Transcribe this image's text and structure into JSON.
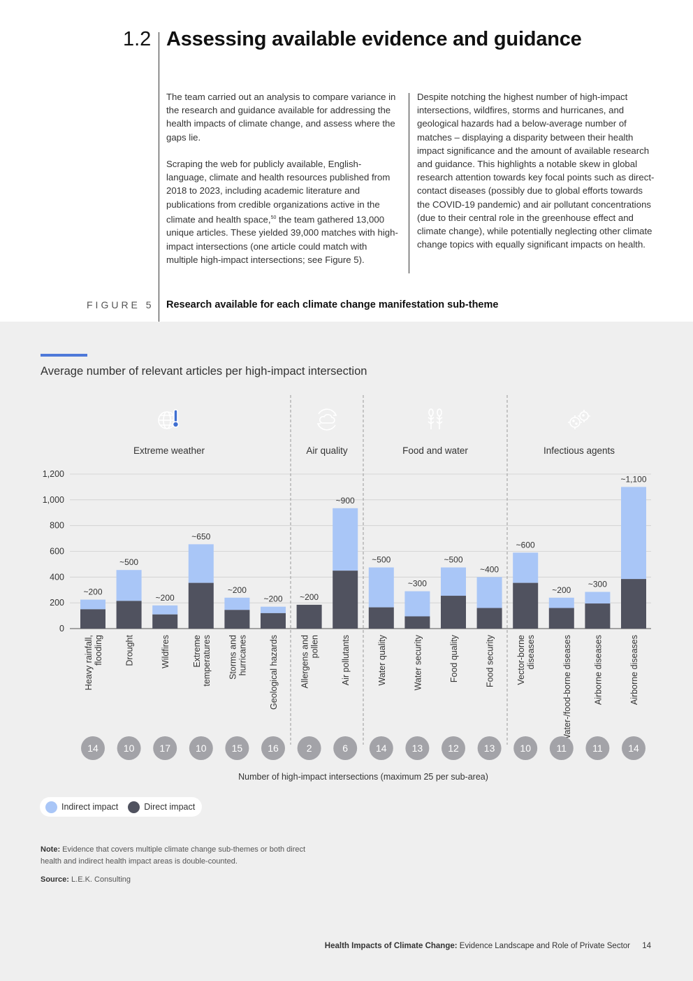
{
  "section": {
    "number": "1.2",
    "title": "Assessing available evidence and guidance"
  },
  "body": {
    "col1_p1": "The team carried out an analysis to compare variance in the research and guidance available for addressing the health impacts of climate change, and assess where the gaps lie.",
    "col1_p2a": "Scraping the web for publicly available, English-language, climate and health resources published from 2018 to 2023, including academic literature and publications from credible organizations active in the climate and health space,",
    "col1_p2_sup": "50",
    "col1_p2b": " the team gathered 13,000 unique articles. These yielded 39,000 matches with high-impact intersections (one article could match with multiple high-impact intersections; see Figure 5).",
    "col2_p1": "Despite notching the highest number of high-impact intersections, wildfires, storms and hurricanes, and geological hazards had a below-average number of matches – displaying a disparity between their health impact significance and the amount of available research and guidance. This highlights a notable skew in global research attention towards key focal points such as direct-contact diseases (possibly due to global efforts towards the COVID-19 pandemic) and air pollutant concentrations (due to their central role in the greenhouse effect and climate change), while potentially neglecting other climate change topics with equally significant impacts on health."
  },
  "figure": {
    "label": "FIGURE 5",
    "caption": "Research available for each climate change manifestation sub-theme",
    "subtitle": "Average number of relevant articles per high-impact intersection"
  },
  "categories": [
    {
      "name": "Extreme weather",
      "icon": "globe-thermometer-icon",
      "color": "#3f6fd1"
    },
    {
      "name": "Air quality",
      "icon": "cloud-cycle-icon",
      "color": "#4a8fe0"
    },
    {
      "name": "Food and water",
      "icon": "wheat-icon",
      "color": "#8e929b"
    },
    {
      "name": "Infectious agents",
      "icon": "virus-icon",
      "color": "#a93fd6"
    }
  ],
  "chart_data": {
    "type": "bar",
    "stacked": true,
    "title": "Average number of relevant articles per high-impact intersection",
    "ylim": [
      0,
      1200
    ],
    "yticks": [
      0,
      200,
      400,
      600,
      800,
      1000,
      1200
    ],
    "ytick_labels": [
      "0",
      "200",
      "400",
      "600",
      "800",
      "1,000",
      "1,200"
    ],
    "categories": [
      "Heavy rainfall, flooding",
      "Drought",
      "Wildfires",
      "Extreme temperatures",
      "Storms and hurricanes",
      "Geological hazards",
      "Allergens and pollen",
      "Air pollutants",
      "Water quality",
      "Water security",
      "Food quality",
      "Food security",
      "Vector-borne diseases",
      "Water-/food-borne diseases",
      "Airborne diseases",
      "Airborne diseases"
    ],
    "groups": [
      0,
      0,
      0,
      0,
      0,
      0,
      1,
      1,
      2,
      2,
      2,
      2,
      3,
      3,
      3,
      3
    ],
    "series": [
      {
        "name": "Direct impact",
        "color": "#50525f",
        "values": [
          150,
          215,
          110,
          355,
          145,
          120,
          185,
          450,
          165,
          95,
          255,
          160,
          355,
          160,
          195,
          385
        ]
      },
      {
        "name": "Indirect impact",
        "color": "#a9c6f7",
        "values": [
          75,
          240,
          70,
          300,
          95,
          50,
          0,
          485,
          310,
          195,
          220,
          240,
          235,
          80,
          90,
          715
        ]
      }
    ],
    "data_labels": [
      "~200",
      "~500",
      "~200",
      "~650",
      "~200",
      "~200",
      "~200",
      "~900",
      "~500",
      "~300",
      "~500",
      "~400",
      "~600",
      "~200",
      "~300",
      "~1,100"
    ],
    "intersections": [
      14,
      10,
      17,
      10,
      15,
      16,
      2,
      6,
      14,
      13,
      12,
      13,
      10,
      11,
      11,
      14
    ],
    "intersections_label": "Number of high-impact intersections (maximum 25 per sub-area)",
    "legend": [
      "Indirect impact",
      "Direct impact"
    ]
  },
  "notes": {
    "note_label": "Note:",
    "note_text": "Evidence that covers multiple climate change sub-themes or both direct health and indirect health impact areas is double-counted.",
    "source_label": "Source:",
    "source_text": "L.E.K. Consulting"
  },
  "footer": {
    "title_bold": "Health Impacts of Climate Change:",
    "title_rest": "Evidence Landscape and Role of Private Sector",
    "page": "14"
  }
}
